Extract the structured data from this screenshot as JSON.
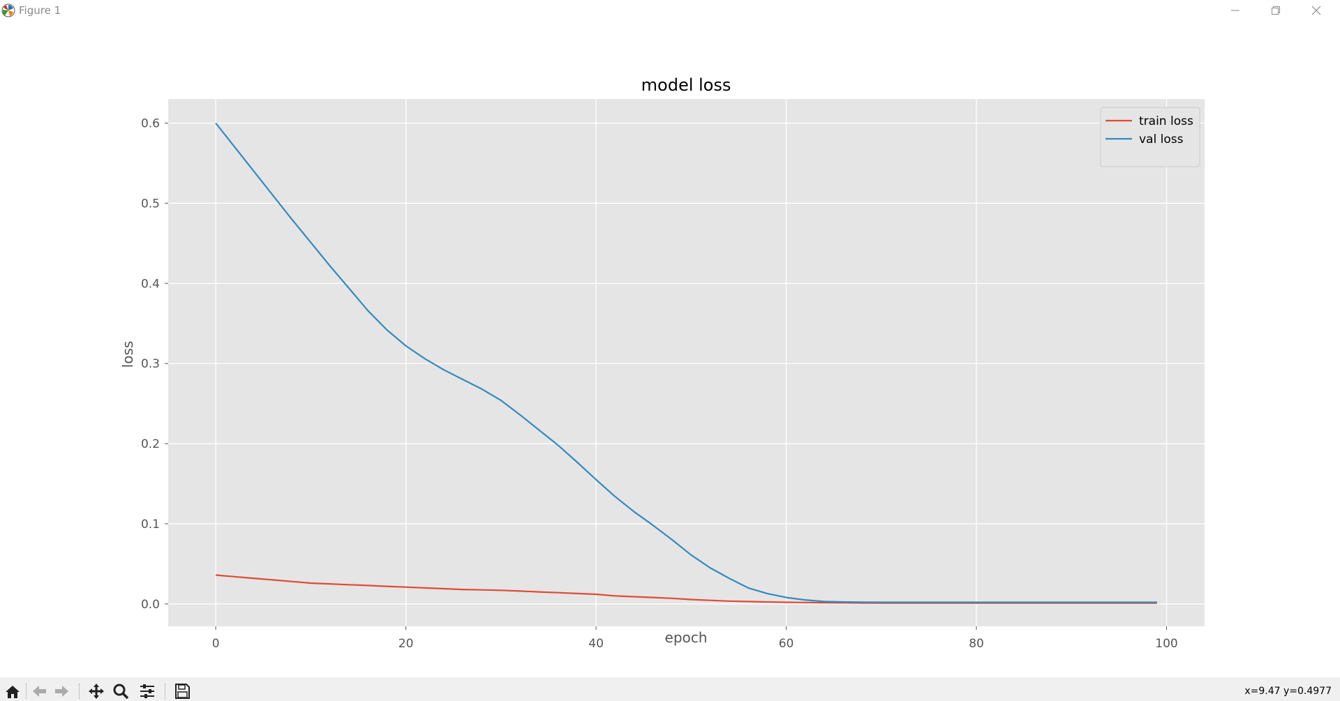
{
  "window": {
    "title": "Figure 1",
    "icon": "matplotlib-logo-icon"
  },
  "toolbar": {
    "buttons": [
      "home-icon",
      "back-icon",
      "forward-icon",
      "pan-icon",
      "zoom-icon",
      "configure-subplots-icon",
      "save-icon"
    ],
    "coords_text": "x=9.47 y=0.4977"
  },
  "chart_data": {
    "type": "line",
    "title": "model loss",
    "xlabel": "epoch",
    "ylabel": "loss",
    "xlim": [
      -5,
      104
    ],
    "ylim": [
      -0.028,
      0.63
    ],
    "xticks": [
      0,
      20,
      40,
      60,
      80,
      100
    ],
    "yticks": [
      0.0,
      0.1,
      0.2,
      0.3,
      0.4,
      0.5,
      0.6
    ],
    "ytick_labels": [
      "0.0",
      "0.1",
      "0.2",
      "0.3",
      "0.4",
      "0.5",
      "0.6"
    ],
    "grid": true,
    "style": "ggplot",
    "legend": {
      "position": "upper right",
      "entries": [
        "train loss",
        "val loss"
      ]
    },
    "series": [
      {
        "name": "train loss",
        "color": "#E24A33",
        "x": [
          0,
          2,
          4,
          6,
          8,
          10,
          12,
          14,
          16,
          18,
          20,
          22,
          24,
          26,
          28,
          30,
          32,
          34,
          36,
          38,
          40,
          42,
          44,
          46,
          48,
          50,
          52,
          54,
          56,
          58,
          60,
          62,
          64,
          66,
          68,
          70,
          75,
          80,
          85,
          90,
          95,
          99
        ],
        "y": [
          0.036,
          0.034,
          0.032,
          0.03,
          0.028,
          0.026,
          0.025,
          0.024,
          0.023,
          0.022,
          0.021,
          0.02,
          0.019,
          0.018,
          0.0175,
          0.017,
          0.016,
          0.015,
          0.014,
          0.013,
          0.012,
          0.01,
          0.009,
          0.008,
          0.007,
          0.0055,
          0.0045,
          0.0035,
          0.003,
          0.0025,
          0.002,
          0.0018,
          0.0015,
          0.0013,
          0.0012,
          0.0011,
          0.001,
          0.001,
          0.001,
          0.001,
          0.001,
          0.001
        ]
      },
      {
        "name": "val loss",
        "color": "#348ABD",
        "x": [
          0,
          2,
          4,
          6,
          8,
          10,
          12,
          14,
          16,
          18,
          20,
          22,
          24,
          26,
          28,
          30,
          32,
          34,
          36,
          38,
          40,
          42,
          44,
          46,
          48,
          50,
          52,
          54,
          56,
          58,
          60,
          62,
          64,
          66,
          68,
          70,
          75,
          80,
          85,
          90,
          95,
          99
        ],
        "y": [
          0.6,
          0.57,
          0.54,
          0.51,
          0.48,
          0.451,
          0.422,
          0.394,
          0.366,
          0.342,
          0.322,
          0.306,
          0.292,
          0.28,
          0.268,
          0.254,
          0.236,
          0.217,
          0.198,
          0.177,
          0.155,
          0.134,
          0.115,
          0.098,
          0.08,
          0.061,
          0.045,
          0.032,
          0.02,
          0.013,
          0.008,
          0.005,
          0.003,
          0.0025,
          0.0022,
          0.002,
          0.002,
          0.002,
          0.002,
          0.002,
          0.002,
          0.002
        ]
      }
    ]
  }
}
